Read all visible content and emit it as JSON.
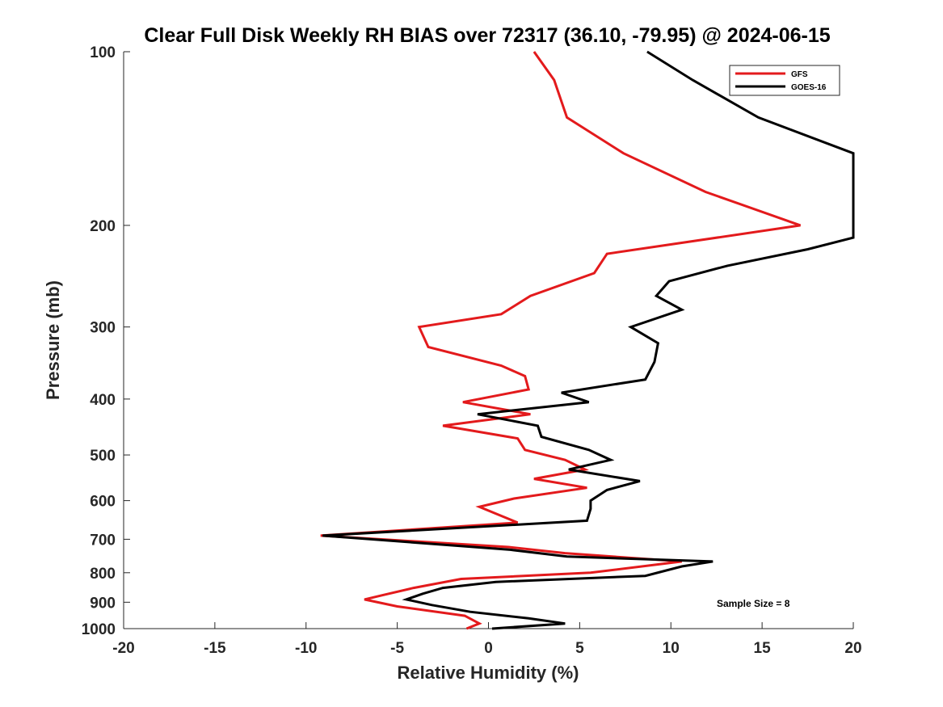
{
  "chart_data": {
    "type": "line",
    "title": "Clear Full Disk Weekly RH BIAS over 72317 (36.10, -79.95) @ 2024-06-15",
    "xlabel": "Relative Humidity (%)",
    "ylabel": "Pressure (mb)",
    "xlim": [
      -20,
      20
    ],
    "ylim": [
      100,
      1000
    ],
    "yscale": "log",
    "y_reversed": true,
    "grid": false,
    "legend_position": "top-right",
    "xticks": [
      -20,
      -15,
      -10,
      -5,
      0,
      5,
      10,
      15,
      20
    ],
    "yticks": [
      100,
      200,
      300,
      400,
      500,
      600,
      700,
      800,
      900,
      1000
    ],
    "annotation": "Sample Size = 8",
    "series": [
      {
        "name": "GFS",
        "color": "#e31a1c",
        "x": [
          2.5,
          3.6,
          4.3,
          7.4,
          11.9,
          17.1,
          6.5,
          5.8,
          2.3,
          0.7,
          -3.8,
          -3.3,
          0.7,
          2.0,
          2.2,
          -1.4,
          2.3,
          -2.5,
          1.6,
          2.0,
          4.2,
          5.3,
          2.5,
          5.4,
          1.4,
          -0.5,
          1.6,
          -9.2,
          1.1,
          4.2,
          10.6,
          5.6,
          -1.5,
          -4.1,
          -5.8,
          -6.8,
          -5.0,
          -1.3,
          -0.5,
          -1.2
        ],
        "y": [
          100,
          112,
          130,
          150,
          175,
          200,
          224,
          242,
          265,
          285,
          300,
          325,
          350,
          365,
          385,
          405,
          425,
          445,
          468,
          490,
          510,
          530,
          550,
          570,
          595,
          615,
          655,
          690,
          722,
          740,
          765,
          800,
          820,
          850,
          875,
          890,
          915,
          950,
          980,
          1000
        ]
      },
      {
        "name": "GOES-16",
        "color": "#000000",
        "x": [
          8.7,
          11.2,
          14.8,
          20.0,
          20.0,
          17.5,
          13.1,
          9.9,
          9.2,
          10.6,
          7.8,
          9.3,
          9.1,
          8.6,
          4.0,
          5.5,
          -0.6,
          2.7,
          2.9,
          5.5,
          6.7,
          4.4,
          8.3,
          6.5,
          5.6,
          5.6,
          5.4,
          -9.1,
          1.2,
          4.3,
          12.3,
          10.6,
          8.6,
          0.4,
          -2.5,
          -3.6,
          -4.5,
          -3.1,
          -1.0,
          2.2,
          4.2,
          0.2
        ],
        "y": [
          100,
          112,
          130,
          150,
          210,
          220,
          235,
          250,
          265,
          280,
          300,
          320,
          345,
          370,
          390,
          405,
          425,
          445,
          465,
          490,
          510,
          530,
          555,
          575,
          600,
          620,
          650,
          690,
          730,
          750,
          765,
          780,
          810,
          830,
          850,
          870,
          890,
          910,
          935,
          960,
          980,
          1000
        ]
      }
    ]
  }
}
